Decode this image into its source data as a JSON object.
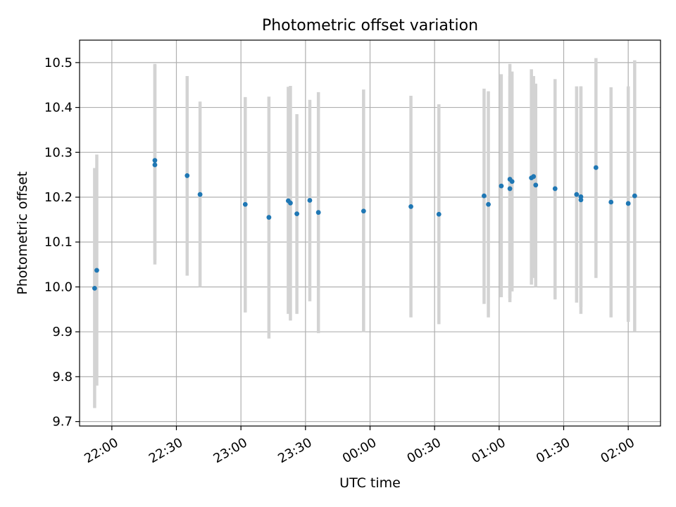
{
  "chart_data": {
    "type": "scatter",
    "title": "Photometric offset variation",
    "xlabel": "UTC time",
    "ylabel": "Photometric offset",
    "grid": true,
    "legend": "none",
    "colors": {
      "points": "#1f77b4",
      "errorbars": "#d3d3d3",
      "grid": "#b0b0b0",
      "axes": "#000000"
    },
    "xlim": [
      "21:45",
      "02:15"
    ],
    "ylim": [
      9.69,
      10.55
    ],
    "x_ticks": [
      "22:00",
      "22:30",
      "23:00",
      "23:30",
      "00:00",
      "00:30",
      "01:00",
      "01:30",
      "02:00"
    ],
    "y_ticks": [
      "9.7",
      "9.8",
      "9.9",
      "10.0",
      "10.1",
      "10.2",
      "10.3",
      "10.4",
      "10.5"
    ],
    "points": [
      {
        "x": "21:52",
        "y": 9.997,
        "ylo": 9.73,
        "yhi": 10.265
      },
      {
        "x": "21:53",
        "y": 10.037,
        "ylo": 9.78,
        "yhi": 10.295
      },
      {
        "x": "22:20",
        "y": 10.272,
        "ylo": 10.05,
        "yhi": 10.495
      },
      {
        "x": "22:20",
        "y": 10.282,
        "ylo": 10.06,
        "yhi": 10.497
      },
      {
        "x": "22:35",
        "y": 10.248,
        "ylo": 10.025,
        "yhi": 10.47
      },
      {
        "x": "22:41",
        "y": 10.206,
        "ylo": 10.0,
        "yhi": 10.413
      },
      {
        "x": "23:02",
        "y": 10.184,
        "ylo": 9.943,
        "yhi": 10.423
      },
      {
        "x": "23:13",
        "y": 10.155,
        "ylo": 9.885,
        "yhi": 10.424
      },
      {
        "x": "23:22",
        "y": 10.192,
        "ylo": 9.94,
        "yhi": 10.446
      },
      {
        "x": "23:23",
        "y": 10.187,
        "ylo": 9.925,
        "yhi": 10.448
      },
      {
        "x": "23:26",
        "y": 10.163,
        "ylo": 9.94,
        "yhi": 10.385
      },
      {
        "x": "23:32",
        "y": 10.193,
        "ylo": 9.968,
        "yhi": 10.417
      },
      {
        "x": "23:36",
        "y": 10.166,
        "ylo": 9.897,
        "yhi": 10.434
      },
      {
        "x": "23:57",
        "y": 10.169,
        "ylo": 9.899,
        "yhi": 10.44
      },
      {
        "x": "00:19",
        "y": 10.179,
        "ylo": 9.932,
        "yhi": 10.426
      },
      {
        "x": "00:32",
        "y": 10.162,
        "ylo": 9.917,
        "yhi": 10.407
      },
      {
        "x": "00:53",
        "y": 10.203,
        "ylo": 9.962,
        "yhi": 10.442
      },
      {
        "x": "00:55",
        "y": 10.184,
        "ylo": 9.932,
        "yhi": 10.436
      },
      {
        "x": "01:01",
        "y": 10.225,
        "ylo": 9.977,
        "yhi": 10.474
      },
      {
        "x": "01:05",
        "y": 10.219,
        "ylo": 9.966,
        "yhi": 10.47
      },
      {
        "x": "01:05",
        "y": 10.24,
        "ylo": 9.975,
        "yhi": 10.497
      },
      {
        "x": "01:06",
        "y": 10.235,
        "ylo": 9.99,
        "yhi": 10.48
      },
      {
        "x": "01:15",
        "y": 10.243,
        "ylo": 10.005,
        "yhi": 10.485
      },
      {
        "x": "01:16",
        "y": 10.246,
        "ylo": 10.02,
        "yhi": 10.47
      },
      {
        "x": "01:17",
        "y": 10.227,
        "ylo": 10.0,
        "yhi": 10.453
      },
      {
        "x": "01:26",
        "y": 10.219,
        "ylo": 9.972,
        "yhi": 10.463
      },
      {
        "x": "01:36",
        "y": 10.206,
        "ylo": 9.965,
        "yhi": 10.447
      },
      {
        "x": "01:38",
        "y": 10.201,
        "ylo": 9.955,
        "yhi": 10.447
      },
      {
        "x": "01:38",
        "y": 10.194,
        "ylo": 9.94,
        "yhi": 10.447
      },
      {
        "x": "01:45",
        "y": 10.266,
        "ylo": 10.02,
        "yhi": 10.51
      },
      {
        "x": "01:52",
        "y": 10.189,
        "ylo": 9.932,
        "yhi": 10.445
      },
      {
        "x": "02:00",
        "y": 10.186,
        "ylo": 9.922,
        "yhi": 10.447
      },
      {
        "x": "02:03",
        "y": 10.203,
        "ylo": 9.9,
        "yhi": 10.505
      }
    ]
  }
}
